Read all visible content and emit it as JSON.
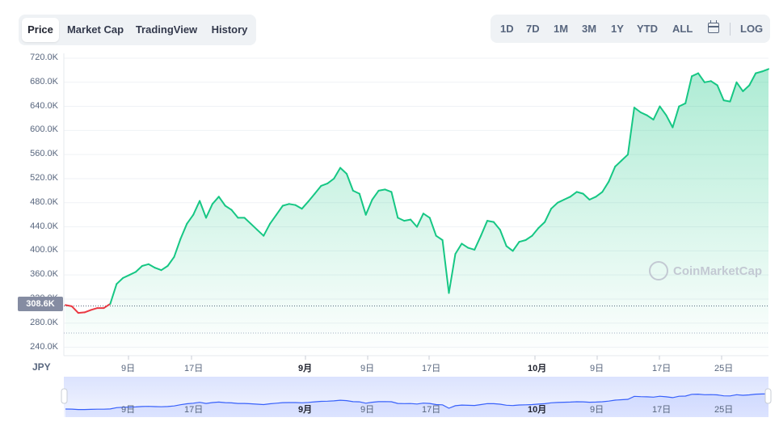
{
  "tabs": [
    {
      "label": "Price",
      "active": true
    },
    {
      "label": "Market Cap",
      "active": false
    },
    {
      "label": "TradingView",
      "active": false
    },
    {
      "label": "History",
      "active": false
    }
  ],
  "ranges": [
    "1D",
    "7D",
    "1M",
    "3M",
    "1Y",
    "YTD",
    "ALL"
  ],
  "log_label": "LOG",
  "calendar_icon": "calendar-icon",
  "currency": "JPY",
  "current_price_label": "308.6K",
  "watermark": "CoinMarketCap",
  "colors": {
    "up": "#16c784",
    "down": "#ea3943",
    "fill": "#16c784",
    "navigator": "#3861fb"
  },
  "chart_data": {
    "type": "line",
    "xlabel": "",
    "ylabel": "",
    "x_ticks": [
      "9日",
      "17日",
      "9月",
      "9日",
      "17日",
      "10月",
      "9日",
      "17日",
      "25日"
    ],
    "y_ticks": [
      "720.0K",
      "680.0K",
      "640.0K",
      "600.0K",
      "560.0K",
      "520.0K",
      "480.0K",
      "440.0K",
      "400.0K",
      "360.0K",
      "320.0K",
      "280.0K",
      "240.0K"
    ],
    "ylim": [
      226000,
      728000
    ],
    "reference_price": 308600,
    "series": [
      {
        "values": [
          310000,
          308000,
          297000,
          298000,
          302000,
          305000,
          305000,
          312000,
          345000,
          355000,
          360000,
          365000,
          375000,
          378000,
          372000,
          368000,
          375000,
          390000,
          420000,
          445000,
          460000,
          483000,
          455000,
          478000,
          490000,
          475000,
          468000,
          455000,
          455000,
          445000,
          435000,
          425000,
          445000,
          460000,
          475000,
          478000,
          476000,
          470000,
          482000,
          495000,
          508000,
          512000,
          520000,
          538000,
          528000,
          500000,
          495000,
          460000,
          485000,
          500000,
          502000,
          498000,
          455000,
          450000,
          452000,
          440000,
          462000,
          455000,
          425000,
          418000,
          330000,
          395000,
          412000,
          405000,
          402000,
          425000,
          450000,
          448000,
          435000,
          408000,
          400000,
          415000,
          418000,
          425000,
          438000,
          448000,
          470000,
          480000,
          485000,
          490000,
          498000,
          495000,
          485000,
          490000,
          498000,
          515000,
          540000,
          550000,
          560000,
          638000,
          630000,
          625000,
          618000,
          640000,
          625000,
          605000,
          640000,
          645000,
          690000,
          695000,
          680000,
          682000,
          675000,
          650000,
          648000,
          680000,
          665000,
          675000,
          695000,
          698000,
          702000
        ]
      }
    ]
  },
  "navigator": {
    "x_ticks": [
      "9日",
      "17日",
      "9月",
      "9日",
      "17日",
      "10月",
      "9日",
      "17日",
      "25日"
    ]
  }
}
